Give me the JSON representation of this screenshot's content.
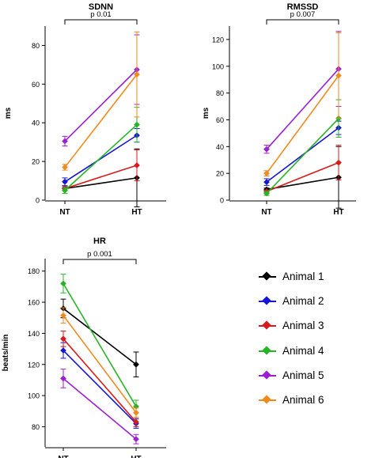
{
  "chart_data": [
    {
      "type": "line",
      "title": "SDNN",
      "ylabel": "ms",
      "categories": [
        "NT",
        "HT"
      ],
      "ylim": [
        0,
        90
      ],
      "yticks": [
        0,
        20,
        40,
        60,
        80
      ],
      "significance": "p 0.01",
      "series": [
        {
          "name": "Animal 1",
          "values": [
            6,
            11.5
          ],
          "err": [
            1,
            15
          ]
        },
        {
          "name": "Animal 2",
          "values": [
            9.5,
            33.5
          ],
          "err": [
            2,
            3.5
          ]
        },
        {
          "name": "Animal 3",
          "values": [
            6,
            18
          ],
          "err": [
            1,
            8
          ]
        },
        {
          "name": "Animal 4",
          "values": [
            5,
            39
          ],
          "err": [
            1.5,
            9
          ]
        },
        {
          "name": "Animal 5",
          "values": [
            30.5,
            67.5
          ],
          "err": [
            2.5,
            18
          ]
        },
        {
          "name": "Animal 6",
          "values": [
            17,
            65
          ],
          "err": [
            1.5,
            22
          ]
        }
      ]
    },
    {
      "type": "line",
      "title": "RMSSD",
      "ylabel": "ms",
      "categories": [
        "NT",
        "HT"
      ],
      "ylim": [
        0,
        130
      ],
      "yticks": [
        0,
        20,
        40,
        60,
        80,
        100,
        120
      ],
      "significance": "p 0.007",
      "series": [
        {
          "name": "Animal 1",
          "values": [
            8,
            17
          ],
          "err": [
            1,
            23
          ]
        },
        {
          "name": "Animal 2",
          "values": [
            13.5,
            54
          ],
          "err": [
            2.5,
            5
          ]
        },
        {
          "name": "Animal 3",
          "values": [
            6.5,
            28
          ],
          "err": [
            1,
            13
          ]
        },
        {
          "name": "Animal 4",
          "values": [
            5,
            61
          ],
          "err": [
            1.5,
            14
          ]
        },
        {
          "name": "Animal 5",
          "values": [
            38,
            98
          ],
          "err": [
            3,
            28
          ]
        },
        {
          "name": "Animal 6",
          "values": [
            20,
            93
          ],
          "err": [
            2,
            32
          ]
        }
      ]
    },
    {
      "type": "line",
      "title": "HR",
      "ylabel": "beats/min",
      "categories": [
        "NT",
        "HT"
      ],
      "ylim": [
        67,
        188
      ],
      "yticks": [
        80,
        100,
        120,
        140,
        160,
        180
      ],
      "significance": "p 0.001",
      "series": [
        {
          "name": "Animal 1",
          "values": [
            156,
            120
          ],
          "err": [
            6,
            8
          ]
        },
        {
          "name": "Animal 2",
          "values": [
            129,
            82
          ],
          "err": [
            5,
            3
          ]
        },
        {
          "name": "Animal 3",
          "values": [
            136.5,
            83
          ],
          "err": [
            5,
            3
          ]
        },
        {
          "name": "Animal 4",
          "values": [
            172,
            93
          ],
          "err": [
            6,
            4
          ]
        },
        {
          "name": "Animal 5",
          "values": [
            111,
            72
          ],
          "err": [
            6,
            3
          ]
        },
        {
          "name": "Animal 6",
          "values": [
            151.5,
            89
          ],
          "err": [
            5,
            3
          ]
        }
      ]
    }
  ],
  "legend": {
    "items": [
      {
        "label": "Animal 1",
        "color": "#000000"
      },
      {
        "label": "Animal 2",
        "color": "#1515d8"
      },
      {
        "label": "Animal 3",
        "color": "#d81a1a"
      },
      {
        "label": "Animal 4",
        "color": "#28b428"
      },
      {
        "label": "Animal 5",
        "color": "#9b1fd6"
      },
      {
        "label": "Animal 6",
        "color": "#f08a1d"
      }
    ]
  }
}
